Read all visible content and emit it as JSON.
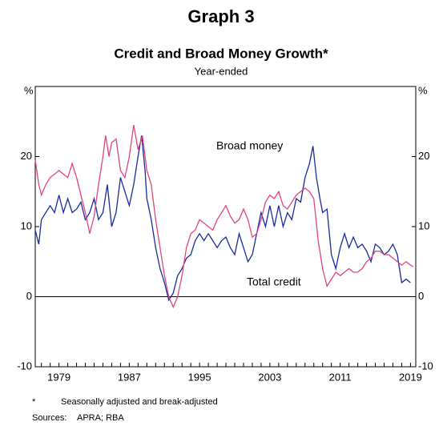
{
  "chart_data": {
    "type": "line",
    "title": "Graph 3",
    "subtitle": "Credit and Broad Money Growth*",
    "subtitle2": "Year-ended",
    "y_unit": "%",
    "footnote_marker": "*",
    "footnote": "Seasonally adjusted and break-adjusted",
    "sources_label": "Sources:",
    "sources": "APRA; RBA",
    "xlim": [
      1976.3,
      2019.6
    ],
    "xticks": [
      1979,
      1987,
      1995,
      2003,
      2011,
      2019
    ],
    "xminor": [
      1977,
      1978,
      1979,
      1980,
      1981,
      1982,
      1983,
      1984,
      1985,
      1986,
      1987,
      1988,
      1989,
      1990,
      1991,
      1992,
      1993,
      1994,
      1995,
      1996,
      1997,
      1998,
      1999,
      2000,
      2001,
      2002,
      2003,
      2004,
      2005,
      2006,
      2007,
      2008,
      2009,
      2010,
      2011,
      2012,
      2013,
      2014,
      2015,
      2016,
      2017,
      2018,
      2019
    ],
    "ylim": [
      -10,
      30
    ],
    "yticks": [
      -10,
      0,
      10,
      20
    ],
    "series": [
      {
        "name": "Broad money",
        "color": "#1a2b9c",
        "x": [
          1976.3,
          1976.7,
          1977,
          1977.5,
          1978,
          1978.5,
          1979,
          1979.5,
          1980,
          1980.5,
          1981,
          1981.5,
          1982,
          1982.5,
          1983,
          1983.5,
          1984,
          1984.5,
          1985,
          1985.5,
          1986,
          1986.5,
          1987,
          1987.5,
          1988,
          1988.4,
          1988.8,
          1989,
          1989.5,
          1990,
          1990.5,
          1991,
          1991.5,
          1992,
          1992.5,
          1993,
          1993.5,
          1994,
          1994.5,
          1995,
          1995.5,
          1996,
          1996.5,
          1997,
          1997.5,
          1998,
          1998.5,
          1999,
          1999.5,
          2000,
          2000.5,
          2001,
          2001.5,
          2002,
          2002.5,
          2003,
          2003.5,
          2004,
          2004.5,
          2005,
          2005.5,
          2006,
          2006.5,
          2007,
          2007.5,
          2007.9,
          2008.3,
          2008.7,
          2009,
          2009.5,
          2010,
          2010.5,
          2011,
          2011.5,
          2012,
          2012.5,
          2013,
          2013.5,
          2014,
          2014.5,
          2015,
          2015.5,
          2016,
          2016.5,
          2017,
          2017.5,
          2018,
          2018.5,
          2019
        ],
        "values": [
          9.5,
          7.5,
          11,
          12,
          13,
          12,
          14.5,
          12,
          14,
          12,
          12.5,
          13.5,
          11,
          12,
          14,
          11,
          12,
          16,
          10,
          12,
          17,
          15,
          13,
          16,
          20,
          23,
          18,
          14,
          11,
          7,
          4,
          2,
          -0.5,
          0.5,
          3,
          4,
          5.5,
          6,
          8,
          9,
          8,
          9,
          8,
          7,
          8,
          8.5,
          7,
          6,
          9,
          7,
          5,
          6,
          9,
          12,
          10,
          13,
          10,
          13,
          10,
          12,
          11,
          14,
          13.5,
          17,
          19,
          21.5,
          17,
          14,
          12,
          12.5,
          6,
          4,
          7,
          9,
          7,
          8.5,
          7,
          7.5,
          6.5,
          5,
          7.5,
          7,
          6,
          6.5,
          7.5,
          6,
          2,
          2.5,
          2
        ]
      },
      {
        "name": "Total credit",
        "color": "#e0457b",
        "x": [
          1976.3,
          1976.7,
          1977,
          1977.5,
          1978,
          1978.5,
          1979,
          1979.5,
          1980,
          1980.5,
          1981,
          1981.5,
          1982,
          1982.5,
          1983,
          1983.5,
          1984,
          1984.3,
          1984.7,
          1985,
          1985.5,
          1986,
          1986.5,
          1987,
          1987.5,
          1988,
          1988.5,
          1989,
          1989.5,
          1990,
          1990.5,
          1991,
          1991.5,
          1992,
          1992.5,
          1993,
          1993.5,
          1994,
          1994.5,
          1995,
          1995.5,
          1996,
          1996.5,
          1997,
          1997.5,
          1998,
          1998.5,
          1999,
          1999.5,
          2000,
          2000.5,
          2001,
          2001.5,
          2002,
          2002.5,
          2003,
          2003.5,
          2004,
          2004.5,
          2005,
          2005.5,
          2006,
          2006.5,
          2007,
          2007.5,
          2008,
          2008.5,
          2009,
          2009.5,
          2010,
          2010.5,
          2011,
          2011.5,
          2012,
          2012.5,
          2013,
          2013.5,
          2014,
          2014.5,
          2015,
          2015.5,
          2016,
          2016.5,
          2017,
          2017.5,
          2018,
          2018.5,
          2019,
          2019.3
        ],
        "values": [
          19.5,
          16,
          14.5,
          16,
          17,
          17.5,
          18,
          17.5,
          17,
          19,
          17,
          14.5,
          12,
          9,
          11.5,
          16,
          20,
          23,
          20,
          22,
          22.5,
          18,
          17,
          20,
          24.5,
          21,
          23,
          18,
          16,
          11,
          7,
          3,
          0,
          -1.5,
          0,
          3,
          7,
          9,
          9.5,
          11,
          10.5,
          10,
          9.5,
          11,
          12,
          13,
          11.5,
          10.5,
          11,
          12.5,
          11,
          8.5,
          9,
          11,
          13.5,
          14.5,
          14,
          15,
          13,
          12.5,
          13.5,
          14.5,
          15,
          15.5,
          15,
          14,
          8,
          4,
          1.5,
          2.5,
          3.5,
          3,
          3.5,
          4,
          3.5,
          3.5,
          4,
          5,
          5.5,
          6.5,
          6.5,
          6,
          6,
          5.5,
          5,
          4.5,
          5,
          4.5,
          4.3
        ]
      }
    ]
  }
}
